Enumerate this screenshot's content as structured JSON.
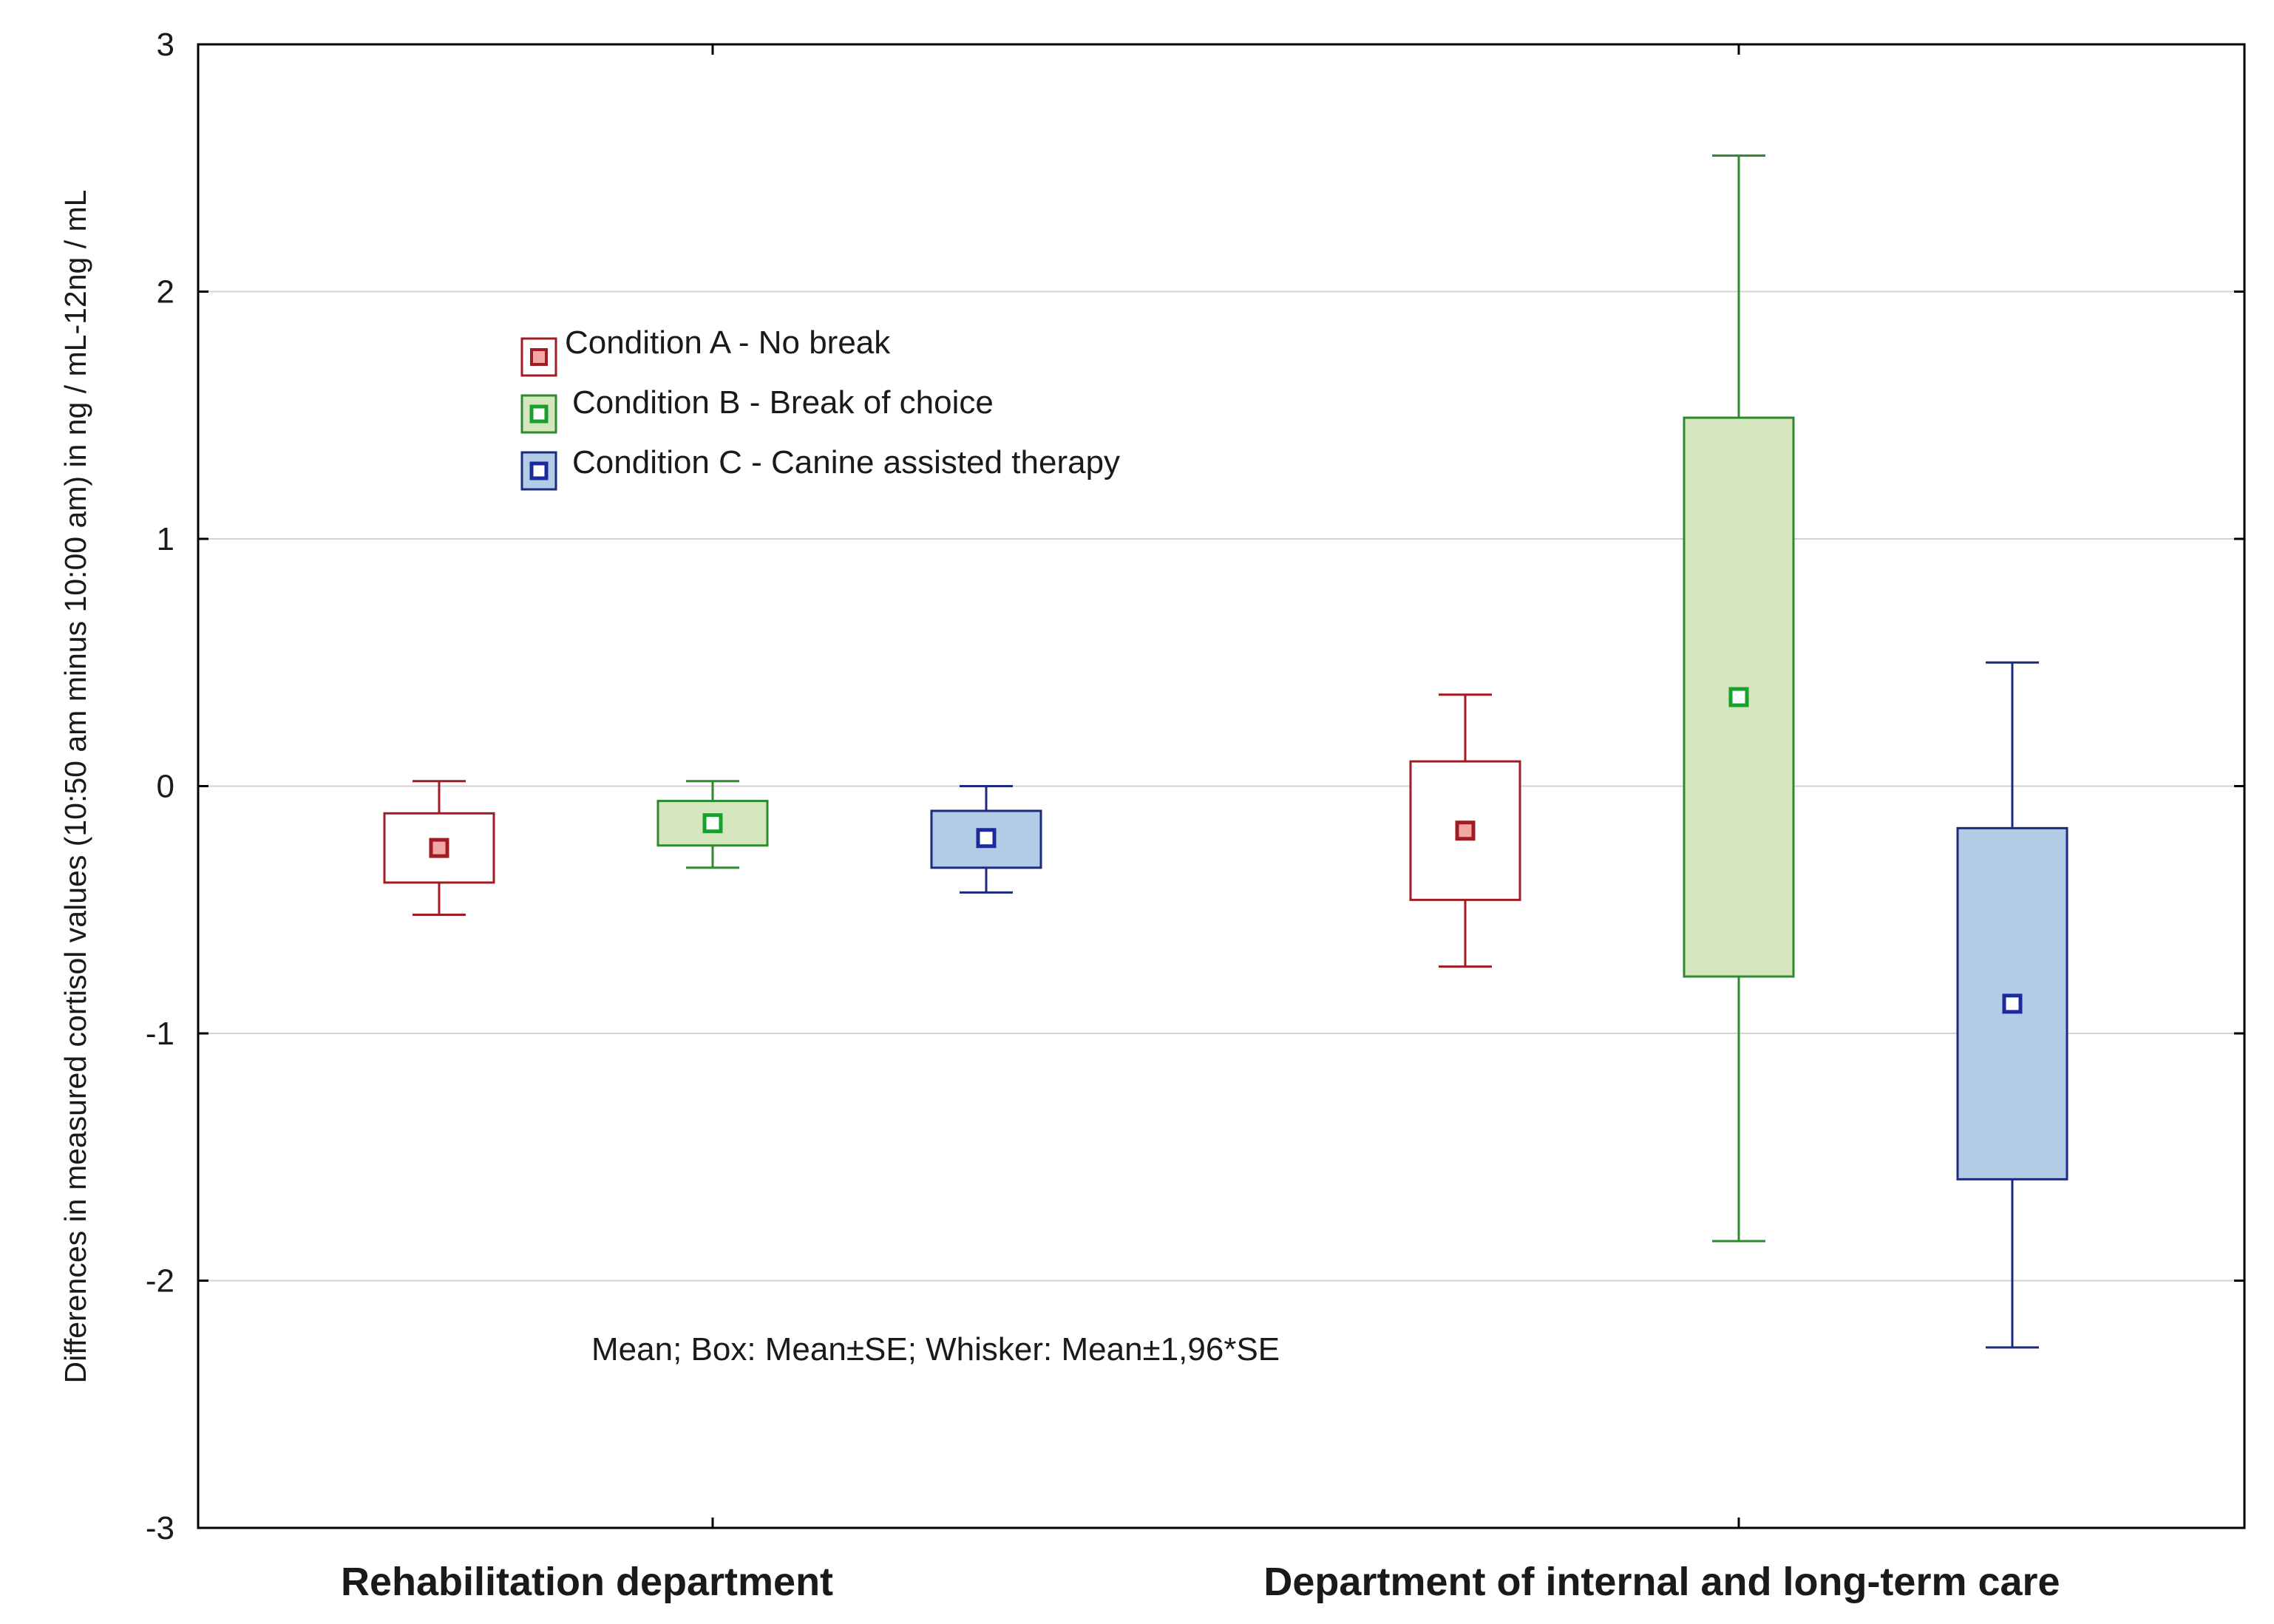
{
  "chart_data": {
    "type": "box",
    "title": "",
    "xlabel": "",
    "ylabel": "Differences in measured cortisol values (10:50 am minus 10:00 am) in ng / mL-12ng / mL",
    "ylim": [
      -3,
      3
    ],
    "yticks": [
      3,
      2,
      1,
      0,
      -1,
      -2,
      -3
    ],
    "grid": true,
    "categories": [
      "Rehabilitation department",
      "Department of internal and long-term care"
    ],
    "note": "Mean; Box: Mean±SE; Whisker: Mean±1,96*SE",
    "legend_position": "top-left",
    "series": [
      {
        "name": "Condition A - No break",
        "edge_color": "#a01c24",
        "fill_color": "#ffffff",
        "marker_fill": "#f2a7a7",
        "points": [
          {
            "category": "Rehabilitation department",
            "mean": -0.25,
            "box_low": -0.39,
            "box_high": -0.11,
            "whisker_low": -0.52,
            "whisker_high": 0.02
          },
          {
            "category": "Department of internal and long-term care",
            "mean": -0.18,
            "box_low": -0.46,
            "box_high": 0.1,
            "whisker_low": -0.73,
            "whisker_high": 0.37
          }
        ]
      },
      {
        "name": "Condition B - Break of choice",
        "edge_color": "#2f8a2f",
        "fill_color": "#d5e5bd",
        "marker_fill": "#ffffff",
        "marker_edge": "#18a02e",
        "points": [
          {
            "category": "Rehabilitation department",
            "mean": -0.15,
            "box_low": -0.24,
            "box_high": -0.06,
            "whisker_low": -0.33,
            "whisker_high": 0.02
          },
          {
            "category": "Department of internal and long-term care",
            "mean": 0.36,
            "box_low": -0.77,
            "box_high": 1.49,
            "whisker_low": -1.84,
            "whisker_high": 2.55
          }
        ]
      },
      {
        "name": "Condition C - Canine assisted therapy",
        "edge_color": "#1c2a80",
        "fill_color": "#b3cce6",
        "marker_fill": "#ffffff",
        "marker_edge": "#1c2a9c",
        "points": [
          {
            "category": "Rehabilitation department",
            "mean": -0.21,
            "box_low": -0.33,
            "box_high": -0.1,
            "whisker_low": -0.43,
            "whisker_high": 0.0
          },
          {
            "category": "Department of internal and long-term care",
            "mean": -0.88,
            "box_low": -1.59,
            "box_high": -0.17,
            "whisker_low": -2.27,
            "whisker_high": 0.5
          }
        ]
      }
    ]
  }
}
